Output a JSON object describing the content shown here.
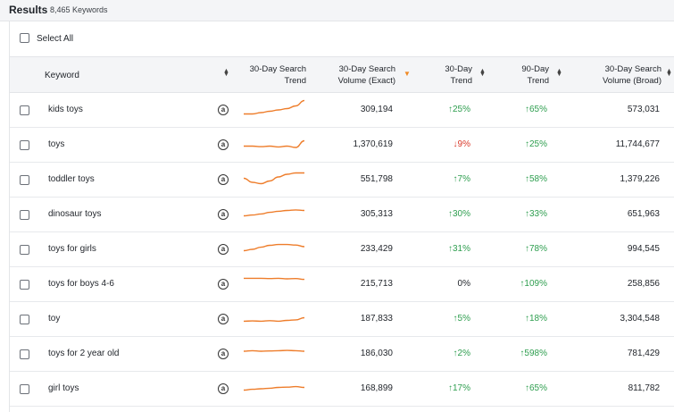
{
  "results": {
    "title": "Results",
    "count": "8,465 Keywords"
  },
  "select_all": {
    "label": "Select All"
  },
  "columns": {
    "keyword": "Keyword",
    "trend_spark": [
      "30-Day Search",
      "Trend"
    ],
    "volume_exact": [
      "30-Day Search",
      "Volume (Exact)"
    ],
    "trend30": [
      "30-Day",
      "Trend"
    ],
    "trend90": [
      "90-Day",
      "Trend"
    ],
    "volume_broad": [
      "30-Day Search",
      "Volume (Broad)"
    ]
  },
  "icons": {
    "marketplace": "amazon-icon",
    "sort": "sort-arrows-icon",
    "sort_active": "sort-desc-icon",
    "up": "arrow-up-icon",
    "down": "arrow-down-icon"
  },
  "colors": {
    "accent": "#f08a24",
    "positive": "#2e9e4f",
    "negative": "#d93a2b",
    "sparkline": "#ee7d2b"
  },
  "rows": [
    {
      "keyword": "kids toys",
      "volume_exact": "309,194",
      "trend30": {
        "dir": "up",
        "value": "25%"
      },
      "trend90": {
        "dir": "up",
        "value": "65%"
      },
      "volume_broad": "573,031",
      "spark": [
        0.35,
        0.35,
        0.4,
        0.45,
        0.5,
        0.55,
        0.65,
        0.85
      ]
    },
    {
      "keyword": "toys",
      "volume_exact": "1,370,619",
      "trend30": {
        "dir": "down",
        "value": "9%"
      },
      "trend90": {
        "dir": "up",
        "value": "25%"
      },
      "volume_broad": "11,744,677",
      "spark": [
        0.45,
        0.45,
        0.43,
        0.45,
        0.42,
        0.45,
        0.4,
        0.65
      ]
    },
    {
      "keyword": "toddler toys",
      "volume_exact": "551,798",
      "trend30": {
        "dir": "up",
        "value": "7%"
      },
      "trend90": {
        "dir": "up",
        "value": "58%"
      },
      "volume_broad": "1,379,226",
      "spark": [
        0.55,
        0.4,
        0.35,
        0.45,
        0.6,
        0.7,
        0.75,
        0.75
      ]
    },
    {
      "keyword": "dinosaur toys",
      "volume_exact": "305,313",
      "trend30": {
        "dir": "up",
        "value": "30%"
      },
      "trend90": {
        "dir": "up",
        "value": "33%"
      },
      "volume_broad": "651,963",
      "spark": [
        0.45,
        0.48,
        0.52,
        0.58,
        0.62,
        0.65,
        0.67,
        0.65
      ]
    },
    {
      "keyword": "toys for girls",
      "volume_exact": "233,429",
      "trend30": {
        "dir": "up",
        "value": "31%"
      },
      "trend90": {
        "dir": "up",
        "value": "78%"
      },
      "volume_broad": "994,545",
      "spark": [
        0.45,
        0.5,
        0.58,
        0.65,
        0.68,
        0.68,
        0.66,
        0.6
      ]
    },
    {
      "keyword": "toys for boys 4-6",
      "volume_exact": "215,713",
      "trend30": {
        "dir": "flat",
        "value": "0%"
      },
      "trend90": {
        "dir": "up",
        "value": "109%"
      },
      "volume_broad": "258,856",
      "spark": [
        0.72,
        0.72,
        0.72,
        0.71,
        0.72,
        0.7,
        0.71,
        0.68
      ]
    },
    {
      "keyword": "toy",
      "volume_exact": "187,833",
      "trend30": {
        "dir": "up",
        "value": "5%"
      },
      "trend90": {
        "dir": "up",
        "value": "18%"
      },
      "volume_broad": "3,304,548",
      "spark": [
        0.42,
        0.43,
        0.42,
        0.44,
        0.42,
        0.45,
        0.47,
        0.55
      ]
    },
    {
      "keyword": "toys for 2 year old",
      "volume_exact": "186,030",
      "trend30": {
        "dir": "up",
        "value": "2%"
      },
      "trend90": {
        "dir": "up",
        "value": "598%"
      },
      "volume_broad": "781,429",
      "spark": [
        0.6,
        0.62,
        0.6,
        0.61,
        0.62,
        0.63,
        0.62,
        0.6
      ]
    },
    {
      "keyword": "girl toys",
      "volume_exact": "168,899",
      "trend30": {
        "dir": "up",
        "value": "17%"
      },
      "trend90": {
        "dir": "up",
        "value": "65%"
      },
      "volume_broad": "811,782",
      "spark": [
        0.45,
        0.48,
        0.5,
        0.52,
        0.55,
        0.56,
        0.58,
        0.55
      ]
    }
  ]
}
